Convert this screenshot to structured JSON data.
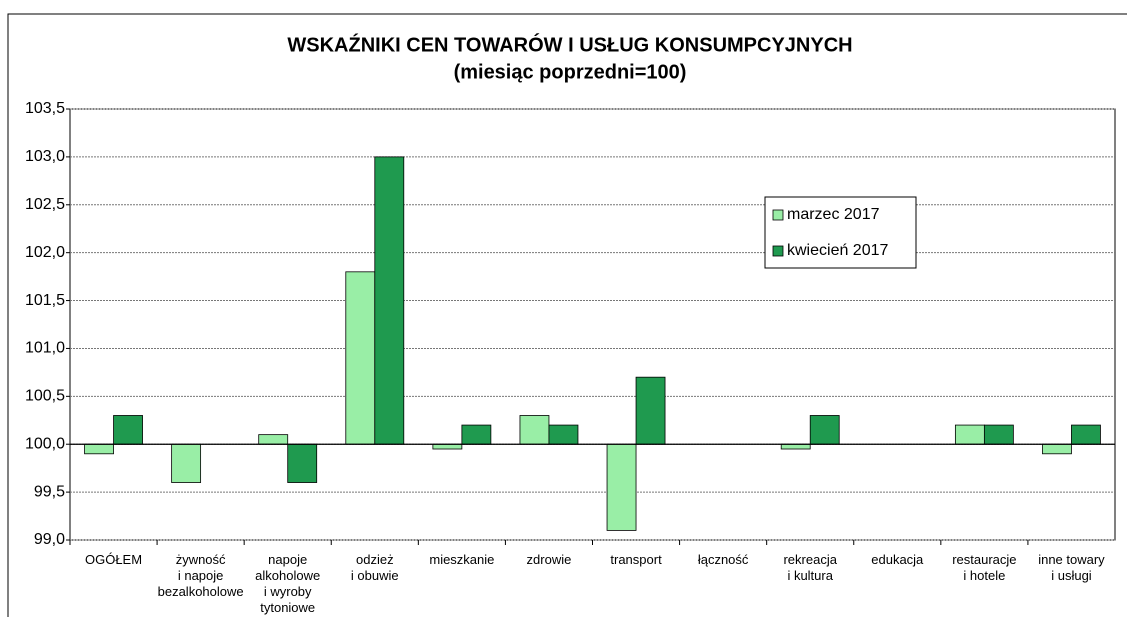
{
  "chart_data": {
    "type": "bar",
    "title": "WSKAŹNIKI CEN TOWARÓW I USŁUG KONSUMPCYJNYCH",
    "subtitle": "(miesiąc poprzedni=100)",
    "categories": [
      "OGÓŁEM",
      "żywność\ni napoje\nbezalkoholowe",
      "napoje\nalkoholowe\ni wyroby\ntytoniowe",
      "odzież\ni obuwie",
      "mieszkanie",
      "zdrowie",
      "transport",
      "łączność",
      "rekreacja\ni kultura",
      "edukacja",
      "restauracje\ni hotele",
      "inne towary\ni usługi"
    ],
    "series": [
      {
        "name": "marzec 2017",
        "color": "#99eea6",
        "values": [
          99.9,
          99.6,
          100.1,
          101.8,
          99.95,
          100.3,
          99.1,
          100.0,
          99.95,
          100.0,
          100.2,
          99.9
        ]
      },
      {
        "name": "kwiecień 2017",
        "color": "#1f9a4f",
        "values": [
          100.3,
          100.0,
          99.6,
          103.0,
          100.2,
          100.2,
          100.7,
          100.0,
          100.3,
          100.0,
          100.2,
          100.2
        ]
      }
    ],
    "ylim": [
      99.0,
      103.5
    ],
    "yticks": [
      {
        "value": 99.0,
        "label": "99,0"
      },
      {
        "value": 99.5,
        "label": "99,5"
      },
      {
        "value": 100.0,
        "label": "100,0"
      },
      {
        "value": 100.5,
        "label": "100,5"
      },
      {
        "value": 101.0,
        "label": "101,0"
      },
      {
        "value": 101.5,
        "label": "101,5"
      },
      {
        "value": 102.0,
        "label": "102,0"
      },
      {
        "value": 102.5,
        "label": "102,5"
      },
      {
        "value": 103.0,
        "label": "103,0"
      },
      {
        "value": 103.5,
        "label": "103,5"
      }
    ],
    "base": 100,
    "grid": true,
    "legend": "right"
  }
}
